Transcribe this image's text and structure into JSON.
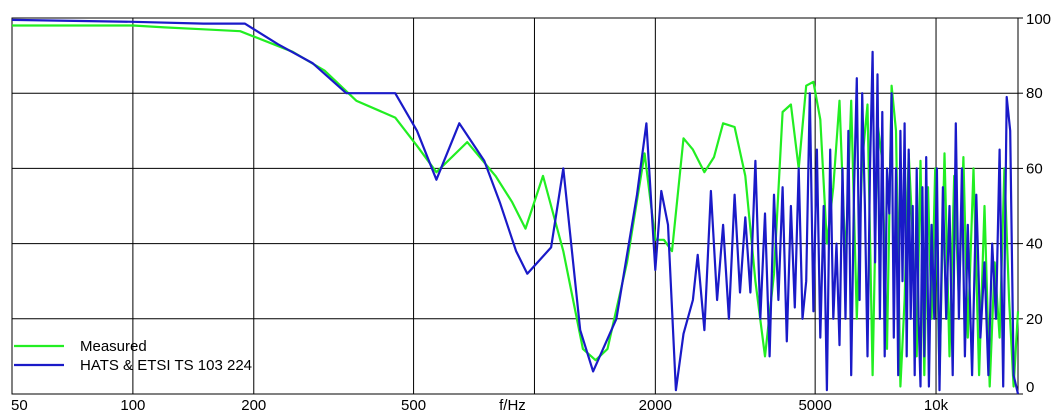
{
  "chart_data": {
    "type": "line",
    "xscale": "log",
    "xlim": [
      50,
      16000
    ],
    "ylim": [
      0,
      100
    ],
    "grid": true,
    "xlabel": "f/Hz",
    "x_ticks": [
      {
        "value": 50,
        "label": "50"
      },
      {
        "value": 100,
        "label": "100"
      },
      {
        "value": 200,
        "label": "200"
      },
      {
        "value": 500,
        "label": "500"
      },
      {
        "value": 2000,
        "label": "2000"
      },
      {
        "value": 5000,
        "label": "5000"
      },
      {
        "value": 10000,
        "label": "10k"
      }
    ],
    "x_gridlines": [
      100,
      200,
      500,
      1000,
      2000,
      5000,
      10000
    ],
    "y_ticks": [
      0,
      20,
      40,
      60,
      80,
      100
    ],
    "legend_position": "bottom-left",
    "series": [
      {
        "name": "Measured",
        "color": "#22ee22",
        "points": [
          [
            50,
            98
          ],
          [
            80,
            98
          ],
          [
            100,
            98
          ],
          [
            120,
            97.5
          ],
          [
            150,
            97
          ],
          [
            185,
            96.5
          ],
          [
            250,
            91
          ],
          [
            300,
            86
          ],
          [
            360,
            78
          ],
          [
            450,
            73.5
          ],
          [
            510,
            66
          ],
          [
            570,
            59
          ],
          [
            680,
            67
          ],
          [
            800,
            58
          ],
          [
            880,
            51
          ],
          [
            950,
            44
          ],
          [
            1050,
            58
          ],
          [
            1180,
            38
          ],
          [
            1320,
            12
          ],
          [
            1420,
            9
          ],
          [
            1520,
            12
          ],
          [
            1700,
            35
          ],
          [
            1880,
            64
          ],
          [
            2000,
            41
          ],
          [
            2100,
            41
          ],
          [
            2200,
            38
          ],
          [
            2350,
            68
          ],
          [
            2480,
            65
          ],
          [
            2650,
            59
          ],
          [
            2800,
            63
          ],
          [
            2950,
            72
          ],
          [
            3150,
            71
          ],
          [
            3350,
            58
          ],
          [
            3550,
            30
          ],
          [
            3750,
            10
          ],
          [
            3950,
            32
          ],
          [
            4150,
            75
          ],
          [
            4350,
            77
          ],
          [
            4550,
            60
          ],
          [
            4750,
            82
          ],
          [
            4950,
            83
          ],
          [
            5150,
            73
          ],
          [
            5350,
            40
          ],
          [
            5550,
            55
          ],
          [
            5750,
            78
          ],
          [
            5950,
            35
          ],
          [
            6150,
            78
          ],
          [
            6350,
            20
          ],
          [
            6550,
            62
          ],
          [
            6750,
            77
          ],
          [
            6950,
            5
          ],
          [
            7150,
            72
          ],
          [
            7350,
            62
          ],
          [
            7550,
            12
          ],
          [
            7750,
            82
          ],
          [
            7950,
            70
          ],
          [
            8150,
            2
          ],
          [
            8350,
            25
          ],
          [
            8550,
            64
          ],
          [
            8750,
            42
          ],
          [
            8950,
            10
          ],
          [
            9150,
            62
          ],
          [
            9350,
            5
          ],
          [
            9550,
            55
          ],
          [
            9750,
            20
          ],
          [
            9950,
            60
          ],
          [
            10200,
            5
          ],
          [
            10500,
            64
          ],
          [
            10800,
            10
          ],
          [
            11100,
            58
          ],
          [
            11400,
            25
          ],
          [
            11700,
            63
          ],
          [
            12000,
            15
          ],
          [
            12400,
            60
          ],
          [
            12800,
            5
          ],
          [
            13200,
            50
          ],
          [
            13600,
            2
          ],
          [
            14000,
            35
          ],
          [
            14400,
            15
          ],
          [
            14800,
            60
          ],
          [
            15200,
            25
          ],
          [
            15600,
            2
          ],
          [
            16000,
            22
          ]
        ]
      },
      {
        "name": "HATS & ETSI TS 103 224",
        "color": "#1a1ac8",
        "points": [
          [
            50,
            99.5
          ],
          [
            100,
            99
          ],
          [
            150,
            98.5
          ],
          [
            190,
            98.5
          ],
          [
            230,
            93
          ],
          [
            280,
            88
          ],
          [
            340,
            80
          ],
          [
            450,
            80
          ],
          [
            510,
            70
          ],
          [
            570,
            57
          ],
          [
            650,
            72
          ],
          [
            750,
            62
          ],
          [
            820,
            51
          ],
          [
            900,
            38
          ],
          [
            960,
            32
          ],
          [
            1100,
            39
          ],
          [
            1180,
            60
          ],
          [
            1300,
            17
          ],
          [
            1400,
            6
          ],
          [
            1600,
            20
          ],
          [
            1800,
            53
          ],
          [
            1900,
            72
          ],
          [
            2000,
            33
          ],
          [
            2070,
            54
          ],
          [
            2150,
            45
          ],
          [
            2250,
            1
          ],
          [
            2350,
            16
          ],
          [
            2480,
            25
          ],
          [
            2550,
            37
          ],
          [
            2650,
            17
          ],
          [
            2750,
            54
          ],
          [
            2850,
            25
          ],
          [
            2950,
            45
          ],
          [
            3050,
            20
          ],
          [
            3150,
            53
          ],
          [
            3250,
            27
          ],
          [
            3350,
            47
          ],
          [
            3450,
            27
          ],
          [
            3550,
            62
          ],
          [
            3650,
            20
          ],
          [
            3750,
            48
          ],
          [
            3850,
            10
          ],
          [
            3950,
            53
          ],
          [
            4050,
            25
          ],
          [
            4150,
            55
          ],
          [
            4250,
            14
          ],
          [
            4350,
            50
          ],
          [
            4450,
            23
          ],
          [
            4550,
            60
          ],
          [
            4650,
            20
          ],
          [
            4750,
            30
          ],
          [
            4850,
            80
          ],
          [
            4950,
            22
          ],
          [
            5050,
            65
          ],
          [
            5150,
            15
          ],
          [
            5250,
            50
          ],
          [
            5350,
            1
          ],
          [
            5450,
            65
          ],
          [
            5550,
            20
          ],
          [
            5650,
            40
          ],
          [
            5750,
            13
          ],
          [
            5850,
            60
          ],
          [
            5950,
            20
          ],
          [
            6050,
            70
          ],
          [
            6150,
            5
          ],
          [
            6250,
            55
          ],
          [
            6350,
            84
          ],
          [
            6450,
            25
          ],
          [
            6550,
            80
          ],
          [
            6650,
            50
          ],
          [
            6750,
            10
          ],
          [
            6850,
            60
          ],
          [
            6950,
            91
          ],
          [
            7050,
            35
          ],
          [
            7150,
            85
          ],
          [
            7250,
            20
          ],
          [
            7350,
            75
          ],
          [
            7450,
            10
          ],
          [
            7550,
            60
          ],
          [
            7650,
            48
          ],
          [
            7750,
            80
          ],
          [
            7850,
            15
          ],
          [
            7950,
            60
          ],
          [
            8050,
            5
          ],
          [
            8150,
            70
          ],
          [
            8250,
            30
          ],
          [
            8350,
            72
          ],
          [
            8450,
            10
          ],
          [
            8550,
            65
          ],
          [
            8650,
            20
          ],
          [
            8750,
            50
          ],
          [
            8850,
            5
          ],
          [
            8950,
            60
          ],
          [
            9050,
            20
          ],
          [
            9150,
            2
          ],
          [
            9250,
            55
          ],
          [
            9350,
            10
          ],
          [
            9450,
            63
          ],
          [
            9600,
            2
          ],
          [
            9750,
            45
          ],
          [
            9900,
            20
          ],
          [
            10050,
            60
          ],
          [
            10200,
            1
          ],
          [
            10400,
            55
          ],
          [
            10600,
            20
          ],
          [
            10800,
            50
          ],
          [
            11000,
            5
          ],
          [
            11200,
            72
          ],
          [
            11400,
            20
          ],
          [
            11600,
            60
          ],
          [
            11800,
            10
          ],
          [
            12000,
            45
          ],
          [
            12300,
            5
          ],
          [
            12600,
            53
          ],
          [
            12900,
            15
          ],
          [
            13200,
            35
          ],
          [
            13500,
            5
          ],
          [
            13800,
            40
          ],
          [
            14100,
            20
          ],
          [
            14400,
            65
          ],
          [
            14700,
            2
          ],
          [
            15000,
            79
          ],
          [
            15300,
            70
          ],
          [
            15600,
            5
          ],
          [
            16000,
            0
          ]
        ]
      }
    ]
  }
}
